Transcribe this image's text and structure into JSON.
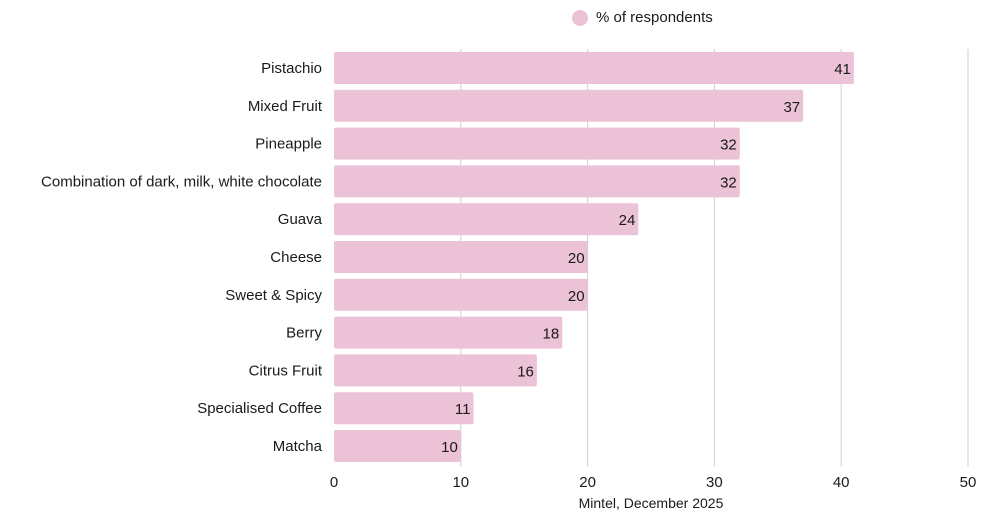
{
  "chart_data": {
    "type": "bar",
    "orientation": "horizontal",
    "categories": [
      "Pistachio",
      "Mixed Fruit",
      "Pineapple",
      "Combination of dark, milk, white chocolate",
      "Guava",
      "Cheese",
      "Sweet & Spicy",
      "Berry",
      "Citrus Fruit",
      "Specialised Coffee",
      "Matcha"
    ],
    "series": [
      {
        "name": "% of respondents",
        "values": [
          41,
          37,
          32,
          32,
          24,
          20,
          20,
          18,
          16,
          11,
          10
        ],
        "color": "#ecc2d7"
      }
    ],
    "xlim": [
      0,
      50
    ],
    "xticks": [
      0,
      10,
      20,
      30,
      40,
      50
    ],
    "grid": true,
    "legend_position": "top-center",
    "data_labels": true
  },
  "source": "Mintel, December 2025"
}
